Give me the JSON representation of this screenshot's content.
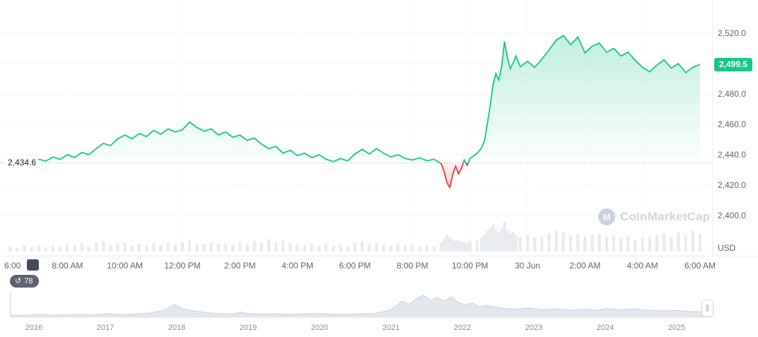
{
  "colors": {
    "up": "#16c784",
    "down": "#ea3943",
    "badge_bg": "#16c784",
    "axis_text": "#5b6673",
    "grid": "#f3f5f8",
    "grid_v": "#f6f8fa",
    "baseline_dot": "#9aa0aa",
    "volume": "#e7ebf0",
    "watermark": "#c9d0d9",
    "nav_fill": "#e3e8ee",
    "nav_stroke": "#ccd4dc"
  },
  "price_axis": {
    "labels": [
      {
        "value": 2520,
        "label": "2,520.0"
      },
      {
        "value": 2480,
        "label": "2,480.0"
      },
      {
        "value": 2460,
        "label": "2,460.0"
      },
      {
        "value": 2440,
        "label": "2,440.0"
      },
      {
        "value": 2420,
        "label": "2,420.0"
      },
      {
        "value": 2400,
        "label": "2,400.0"
      }
    ],
    "current": {
      "value": 2499.5,
      "label": "2,499.5"
    },
    "unit": "USD"
  },
  "time_axis": {
    "labels": [
      "6:00",
      "8:00 AM",
      "10:00 AM",
      "12:00 PM",
      "2:00 PM",
      "4:00 PM",
      "6:00 PM",
      "8:00 PM",
      "10:00 PM",
      "30 Jun",
      "2:00 AM",
      "4:00 AM",
      "6:00 AM"
    ]
  },
  "history_badge": {
    "count": "78"
  },
  "watermark": {
    "text": "CoinMarketCap",
    "logo_letter": "M"
  },
  "navigator": {
    "years": [
      "2016",
      "2017",
      "2018",
      "2019",
      "2020",
      "2021",
      "2022",
      "2023",
      "2024",
      "2025"
    ],
    "profile": [
      [
        0,
        0.1
      ],
      [
        2,
        0.08
      ],
      [
        4,
        0.12
      ],
      [
        6,
        0.09
      ],
      [
        8,
        0.1
      ],
      [
        10,
        0.12
      ],
      [
        12,
        0.1
      ],
      [
        14,
        0.15
      ],
      [
        16,
        0.11
      ],
      [
        18,
        0.14
      ],
      [
        20,
        0.18
      ],
      [
        22,
        0.3
      ],
      [
        23.5,
        0.55
      ],
      [
        24.5,
        0.38
      ],
      [
        26,
        0.28
      ],
      [
        28,
        0.2
      ],
      [
        30,
        0.15
      ],
      [
        32,
        0.14
      ],
      [
        33,
        0.22
      ],
      [
        34,
        0.16
      ],
      [
        36,
        0.13
      ],
      [
        38,
        0.14
      ],
      [
        40,
        0.12
      ],
      [
        42,
        0.14
      ],
      [
        44,
        0.16
      ],
      [
        46,
        0.13
      ],
      [
        48,
        0.12
      ],
      [
        50,
        0.14
      ],
      [
        52,
        0.16
      ],
      [
        54,
        0.28
      ],
      [
        55,
        0.45
      ],
      [
        56,
        0.7
      ],
      [
        57,
        0.55
      ],
      [
        58,
        0.8
      ],
      [
        59,
        0.95
      ],
      [
        60,
        0.72
      ],
      [
        61,
        0.85
      ],
      [
        62,
        0.68
      ],
      [
        63,
        0.88
      ],
      [
        64,
        0.62
      ],
      [
        65,
        0.55
      ],
      [
        66,
        0.6
      ],
      [
        67,
        0.45
      ],
      [
        68,
        0.5
      ],
      [
        70,
        0.4
      ],
      [
        72,
        0.34
      ],
      [
        74,
        0.4
      ],
      [
        76,
        0.32
      ],
      [
        78,
        0.36
      ],
      [
        80,
        0.3
      ],
      [
        82,
        0.34
      ],
      [
        84,
        0.3
      ],
      [
        85,
        0.38
      ],
      [
        87,
        0.32
      ],
      [
        89,
        0.36
      ],
      [
        91,
        0.3
      ],
      [
        93,
        0.28
      ],
      [
        95,
        0.3
      ],
      [
        97,
        0.25
      ],
      [
        100,
        0.22
      ]
    ]
  },
  "chart_data": {
    "type": "area",
    "title": "Intraday price with baseline, volume and 10-year range navigator",
    "x_unit": "hours_since_6am",
    "x_range": [
      0,
      24
    ],
    "y_range": [
      2395,
      2525
    ],
    "baseline": 2434.6,
    "baseline_label": "2,434.6",
    "last_price": 2499.5,
    "price_gridlines": [
      2400,
      2420,
      2440,
      2460,
      2480,
      2500,
      2520
    ],
    "points": [
      [
        0,
        2436,
        0.18
      ],
      [
        0.25,
        2434.8,
        0.12
      ],
      [
        0.5,
        2436.5,
        0.2
      ],
      [
        0.75,
        2435.2,
        0.15
      ],
      [
        1,
        2437,
        0.22
      ],
      [
        1.25,
        2435.8,
        0.14
      ],
      [
        1.5,
        2438.5,
        0.18
      ],
      [
        1.75,
        2437,
        0.16
      ],
      [
        2,
        2440,
        0.25
      ],
      [
        2.25,
        2438.2,
        0.2
      ],
      [
        2.5,
        2441.5,
        0.28
      ],
      [
        2.75,
        2440,
        0.18
      ],
      [
        3,
        2444,
        0.3
      ],
      [
        3.25,
        2447.5,
        0.35
      ],
      [
        3.5,
        2446,
        0.22
      ],
      [
        3.75,
        2450.5,
        0.28
      ],
      [
        4,
        2453,
        0.3
      ],
      [
        4.25,
        2450.5,
        0.22
      ],
      [
        4.5,
        2454,
        0.26
      ],
      [
        4.75,
        2452,
        0.2
      ],
      [
        5,
        2456,
        0.28
      ],
      [
        5.25,
        2453.5,
        0.22
      ],
      [
        5.5,
        2457,
        0.3
      ],
      [
        5.75,
        2455,
        0.24
      ],
      [
        6,
        2456.5,
        0.32
      ],
      [
        6.25,
        2461.5,
        0.4
      ],
      [
        6.5,
        2458,
        0.28
      ],
      [
        6.75,
        2455.5,
        0.25
      ],
      [
        7,
        2457,
        0.3
      ],
      [
        7.25,
        2453,
        0.26
      ],
      [
        7.5,
        2455,
        0.24
      ],
      [
        7.75,
        2451.5,
        0.22
      ],
      [
        8,
        2453,
        0.3
      ],
      [
        8.25,
        2449.5,
        0.26
      ],
      [
        8.5,
        2451,
        0.35
      ],
      [
        8.75,
        2447,
        0.3
      ],
      [
        9,
        2444,
        0.42
      ],
      [
        9.25,
        2445.5,
        0.3
      ],
      [
        9.5,
        2441,
        0.38
      ],
      [
        9.75,
        2443,
        0.28
      ],
      [
        10,
        2439.5,
        0.25
      ],
      [
        10.25,
        2441,
        0.2
      ],
      [
        10.5,
        2438,
        0.26
      ],
      [
        10.75,
        2440,
        0.2
      ],
      [
        11,
        2437,
        0.24
      ],
      [
        11.25,
        2435.5,
        0.18
      ],
      [
        11.5,
        2437.5,
        0.22
      ],
      [
        11.75,
        2436,
        0.18
      ],
      [
        12,
        2440.5,
        0.3
      ],
      [
        12.25,
        2443.5,
        0.34
      ],
      [
        12.5,
        2440.5,
        0.24
      ],
      [
        12.75,
        2444,
        0.3
      ],
      [
        13,
        2441,
        0.26
      ],
      [
        13.25,
        2438.5,
        0.2
      ],
      [
        13.5,
        2440,
        0.24
      ],
      [
        13.75,
        2437.5,
        0.2
      ],
      [
        14,
        2436.5,
        0.22
      ],
      [
        14.25,
        2438,
        0.18
      ],
      [
        14.5,
        2436,
        0.2
      ],
      [
        14.75,
        2437,
        0.16
      ],
      [
        15,
        2434,
        0.3
      ],
      [
        15.1,
        2429,
        0.45
      ],
      [
        15.2,
        2421.5,
        0.58
      ],
      [
        15.3,
        2418.5,
        0.5
      ],
      [
        15.4,
        2427,
        0.42
      ],
      [
        15.5,
        2432.5,
        0.36
      ],
      [
        15.6,
        2427.5,
        0.4
      ],
      [
        15.7,
        2431,
        0.34
      ],
      [
        15.8,
        2436.5,
        0.3
      ],
      [
        15.9,
        2433,
        0.28
      ],
      [
        16,
        2437.5,
        0.35
      ],
      [
        16.25,
        2441,
        0.4
      ],
      [
        16.4,
        2444.5,
        0.45
      ],
      [
        16.5,
        2449,
        0.55
      ],
      [
        16.6,
        2460,
        0.7
      ],
      [
        16.7,
        2472,
        0.8
      ],
      [
        16.8,
        2486,
        0.9
      ],
      [
        16.9,
        2493.5,
        0.75
      ],
      [
        17,
        2489,
        0.65
      ],
      [
        17.1,
        2498,
        0.8
      ],
      [
        17.2,
        2514.5,
        1
      ],
      [
        17.3,
        2504,
        0.7
      ],
      [
        17.4,
        2496.5,
        0.6
      ],
      [
        17.5,
        2500.5,
        0.65
      ],
      [
        17.6,
        2505,
        0.55
      ],
      [
        17.75,
        2498,
        0.5
      ],
      [
        18,
        2501.5,
        0.55
      ],
      [
        18.25,
        2497.5,
        0.45
      ],
      [
        18.5,
        2503,
        0.5
      ],
      [
        18.75,
        2509,
        0.6
      ],
      [
        19,
        2515.5,
        0.7
      ],
      [
        19.25,
        2518.5,
        0.65
      ],
      [
        19.5,
        2512.5,
        0.55
      ],
      [
        19.75,
        2517.5,
        0.6
      ],
      [
        20,
        2507,
        0.5
      ],
      [
        20.25,
        2511.5,
        0.55
      ],
      [
        20.5,
        2513.5,
        0.6
      ],
      [
        20.75,
        2507.5,
        0.5
      ],
      [
        21,
        2510,
        0.55
      ],
      [
        21.25,
        2505,
        0.45
      ],
      [
        21.5,
        2507.5,
        0.5
      ],
      [
        21.75,
        2502,
        0.4
      ],
      [
        22,
        2497.5,
        0.45
      ],
      [
        22.25,
        2494.5,
        0.5
      ],
      [
        22.5,
        2499,
        0.55
      ],
      [
        22.75,
        2502.5,
        0.6
      ],
      [
        23,
        2497,
        0.5
      ],
      [
        23.25,
        2500,
        0.65
      ],
      [
        23.5,
        2494,
        0.55
      ],
      [
        23.75,
        2497.5,
        0.7
      ],
      [
        24,
        2499.5,
        0.6
      ]
    ]
  }
}
